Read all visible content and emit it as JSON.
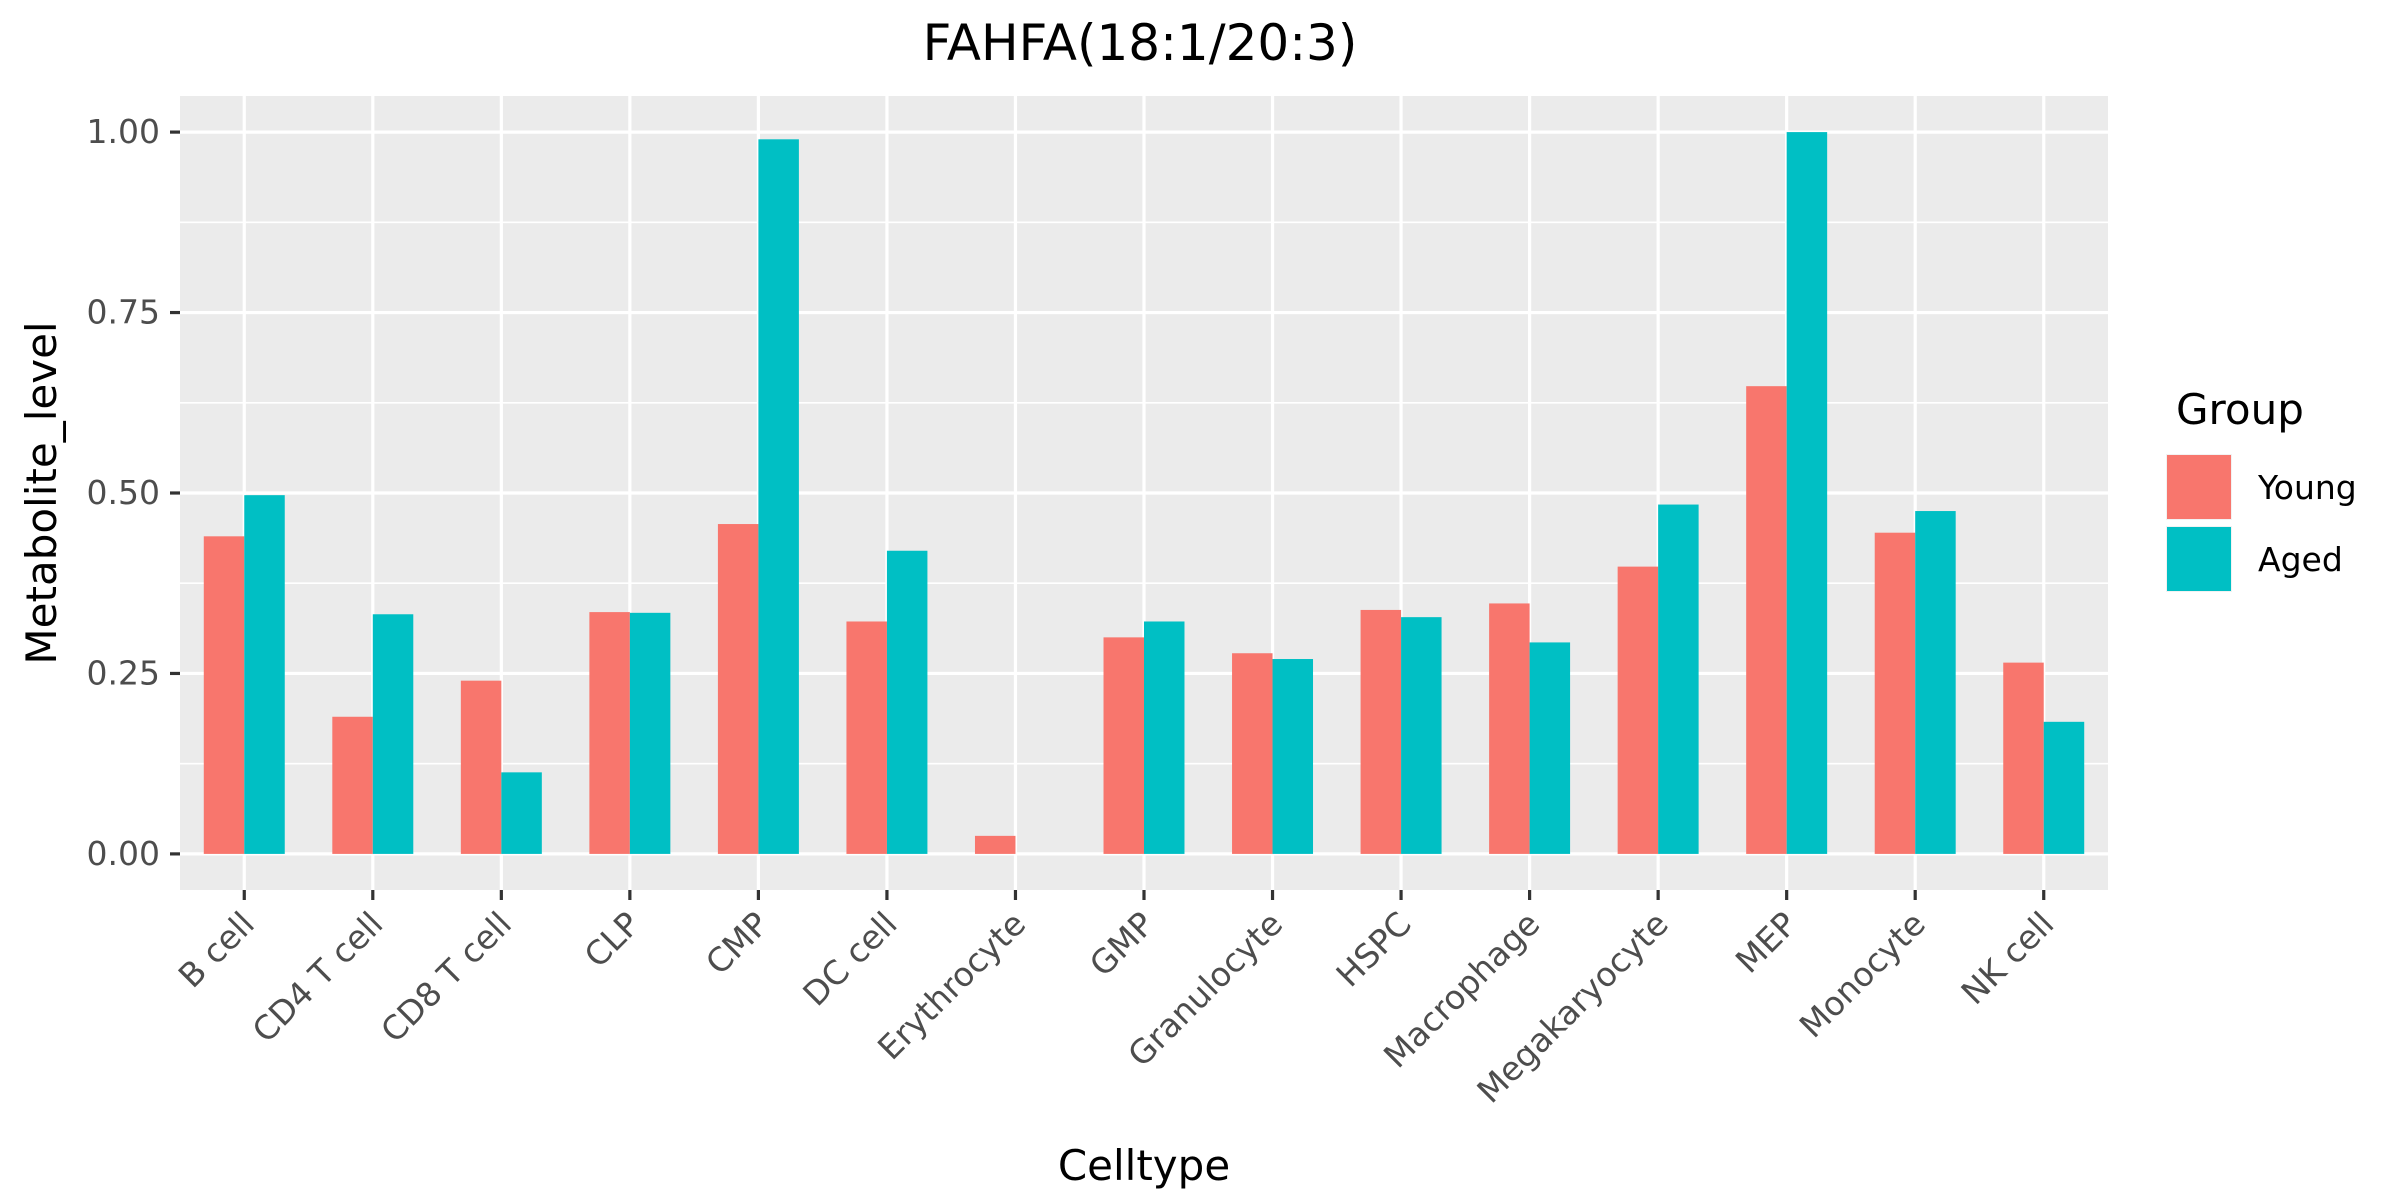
{
  "chart_data": {
    "type": "bar",
    "title": "FAHFA(18:1/20:3)",
    "xlabel": "Celltype",
    "ylabel": "Metabolite_level",
    "categories": [
      "B cell",
      "CD4 T cell",
      "CD8 T cell",
      "CLP",
      "CMP",
      "DC cell",
      "Erythrocyte",
      "GMP",
      "Granulocyte",
      "HSPC",
      "Macrophage",
      "Megakaryocyte",
      "MEP",
      "Monocyte",
      "NK cell"
    ],
    "series": [
      {
        "name": "Young",
        "color": "#F8766D",
        "values": [
          0.44,
          0.19,
          0.24,
          0.335,
          0.457,
          0.322,
          0.025,
          0.3,
          0.278,
          0.338,
          0.347,
          0.398,
          0.648,
          0.445,
          0.265
        ]
      },
      {
        "name": "Aged",
        "color": "#00BFC4",
        "values": [
          0.497,
          0.332,
          0.113,
          0.334,
          0.99,
          0.42,
          0.0,
          0.322,
          0.27,
          0.328,
          0.293,
          0.484,
          1.0,
          0.475,
          0.183
        ]
      }
    ],
    "ylim": [
      -0.05,
      1.05
    ],
    "yticks": [
      {
        "value": 0.0,
        "label": "0.00"
      },
      {
        "value": 0.25,
        "label": "0.25"
      },
      {
        "value": 0.5,
        "label": "0.50"
      },
      {
        "value": 0.75,
        "label": "0.75"
      },
      {
        "value": 1.0,
        "label": "1.00"
      }
    ],
    "grid": true,
    "legend": {
      "title": "Group",
      "position": "right"
    }
  }
}
